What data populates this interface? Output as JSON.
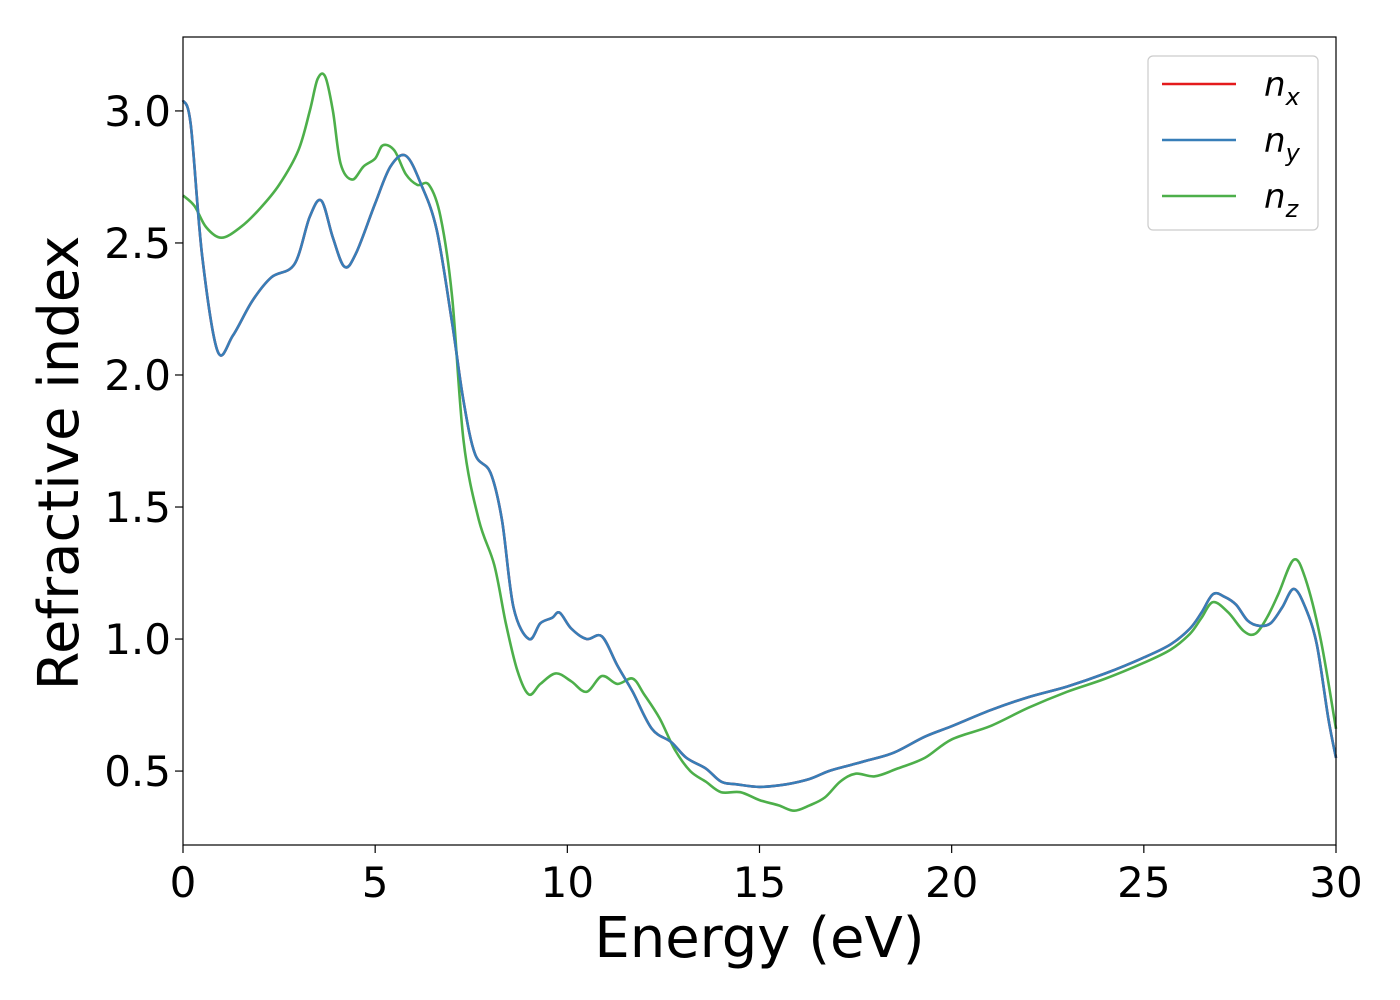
{
  "chart_data": {
    "type": "line",
    "xlabel": "Energy (eV)",
    "ylabel": "Refractive index",
    "xlim": [
      0,
      30
    ],
    "ylim": [
      0.22,
      3.28
    ],
    "xticks": [
      0,
      5,
      10,
      15,
      20,
      25,
      30
    ],
    "yticks": [
      0.5,
      1.0,
      1.5,
      2.0,
      2.5,
      3.0
    ],
    "xtick_labels": [
      "0",
      "5",
      "10",
      "15",
      "20",
      "25",
      "30"
    ],
    "ytick_labels": [
      "0.5",
      "1.0",
      "1.5",
      "2.0",
      "2.5",
      "3.0"
    ],
    "grid": false,
    "legend_position": "top-right",
    "series": [
      {
        "name": "n_x",
        "label_main": "n",
        "label_sub": "x",
        "color": "#e41a1c",
        "x": [
          0,
          0.2,
          0.5,
          0.9,
          1.3,
          1.8,
          2.3,
          2.9,
          3.3,
          3.6,
          3.9,
          4.2,
          4.5,
          5.0,
          5.4,
          5.8,
          6.2,
          6.6,
          7.0,
          7.3,
          7.6,
          8.0,
          8.3,
          8.6,
          9.0,
          9.3,
          9.6,
          9.8,
          10.1,
          10.5,
          10.9,
          11.3,
          11.7,
          12.2,
          12.7,
          13.1,
          13.6,
          14.0,
          14.4,
          15.0,
          15.7,
          16.3,
          16.8,
          17.3,
          17.8,
          18.5,
          19.3,
          20.0,
          21.0,
          22.0,
          23.0,
          24.0,
          25.0,
          25.7,
          26.2,
          26.5,
          26.8,
          27.1,
          27.4,
          27.7,
          28.0,
          28.3,
          28.6,
          28.9,
          29.2,
          29.5,
          29.8,
          30.0
        ],
        "y": [
          3.04,
          2.95,
          2.45,
          2.09,
          2.15,
          2.28,
          2.37,
          2.42,
          2.6,
          2.66,
          2.52,
          2.41,
          2.46,
          2.65,
          2.79,
          2.83,
          2.72,
          2.55,
          2.2,
          1.9,
          1.7,
          1.63,
          1.45,
          1.12,
          1.0,
          1.06,
          1.08,
          1.1,
          1.04,
          1.0,
          1.01,
          0.9,
          0.8,
          0.66,
          0.61,
          0.55,
          0.51,
          0.46,
          0.45,
          0.44,
          0.45,
          0.47,
          0.5,
          0.52,
          0.54,
          0.57,
          0.63,
          0.67,
          0.73,
          0.78,
          0.82,
          0.87,
          0.93,
          0.98,
          1.04,
          1.1,
          1.17,
          1.16,
          1.13,
          1.07,
          1.05,
          1.06,
          1.12,
          1.19,
          1.12,
          0.98,
          0.7,
          0.55
        ]
      },
      {
        "name": "n_y",
        "label_main": "n",
        "label_sub": "y",
        "color": "#377eb8",
        "x": [
          0,
          0.2,
          0.5,
          0.9,
          1.3,
          1.8,
          2.3,
          2.9,
          3.3,
          3.6,
          3.9,
          4.2,
          4.5,
          5.0,
          5.4,
          5.8,
          6.2,
          6.6,
          7.0,
          7.3,
          7.6,
          8.0,
          8.3,
          8.6,
          9.0,
          9.3,
          9.6,
          9.8,
          10.1,
          10.5,
          10.9,
          11.3,
          11.7,
          12.2,
          12.7,
          13.1,
          13.6,
          14.0,
          14.4,
          15.0,
          15.7,
          16.3,
          16.8,
          17.3,
          17.8,
          18.5,
          19.3,
          20.0,
          21.0,
          22.0,
          23.0,
          24.0,
          25.0,
          25.7,
          26.2,
          26.5,
          26.8,
          27.1,
          27.4,
          27.7,
          28.0,
          28.3,
          28.6,
          28.9,
          29.2,
          29.5,
          29.8,
          30.0
        ],
        "y": [
          3.04,
          2.95,
          2.45,
          2.09,
          2.15,
          2.28,
          2.37,
          2.42,
          2.6,
          2.66,
          2.52,
          2.41,
          2.46,
          2.65,
          2.79,
          2.83,
          2.72,
          2.55,
          2.2,
          1.9,
          1.7,
          1.63,
          1.45,
          1.12,
          1.0,
          1.06,
          1.08,
          1.1,
          1.04,
          1.0,
          1.01,
          0.9,
          0.8,
          0.66,
          0.61,
          0.55,
          0.51,
          0.46,
          0.45,
          0.44,
          0.45,
          0.47,
          0.5,
          0.52,
          0.54,
          0.57,
          0.63,
          0.67,
          0.73,
          0.78,
          0.82,
          0.87,
          0.93,
          0.98,
          1.04,
          1.1,
          1.17,
          1.16,
          1.13,
          1.07,
          1.05,
          1.06,
          1.12,
          1.19,
          1.12,
          0.98,
          0.7,
          0.55
        ]
      },
      {
        "name": "n_z",
        "label_main": "n",
        "label_sub": "z",
        "color": "#4daf4a",
        "x": [
          0,
          0.3,
          0.6,
          1.0,
          1.5,
          2.0,
          2.5,
          3.0,
          3.3,
          3.5,
          3.7,
          3.9,
          4.1,
          4.4,
          4.7,
          5.0,
          5.2,
          5.5,
          5.8,
          6.1,
          6.4,
          6.7,
          7.0,
          7.3,
          7.7,
          8.1,
          8.4,
          8.7,
          9.0,
          9.3,
          9.7,
          10.1,
          10.5,
          10.9,
          11.3,
          11.7,
          12.0,
          12.4,
          12.8,
          13.2,
          13.6,
          14.0,
          14.5,
          15.0,
          15.5,
          15.9,
          16.3,
          16.7,
          17.1,
          17.5,
          18.0,
          18.6,
          19.3,
          20.0,
          21.0,
          22.0,
          23.0,
          24.0,
          25.0,
          25.7,
          26.2,
          26.5,
          26.8,
          27.2,
          27.6,
          27.9,
          28.2,
          28.5,
          28.9,
          29.2,
          29.6,
          30.0
        ],
        "y": [
          2.68,
          2.64,
          2.56,
          2.52,
          2.56,
          2.63,
          2.72,
          2.85,
          3.0,
          3.12,
          3.13,
          3.0,
          2.8,
          2.74,
          2.79,
          2.82,
          2.87,
          2.85,
          2.76,
          2.72,
          2.72,
          2.6,
          2.3,
          1.75,
          1.45,
          1.28,
          1.06,
          0.88,
          0.79,
          0.83,
          0.87,
          0.84,
          0.8,
          0.86,
          0.83,
          0.85,
          0.79,
          0.7,
          0.58,
          0.5,
          0.46,
          0.42,
          0.42,
          0.39,
          0.37,
          0.35,
          0.37,
          0.4,
          0.46,
          0.49,
          0.48,
          0.51,
          0.55,
          0.62,
          0.67,
          0.74,
          0.8,
          0.85,
          0.91,
          0.96,
          1.02,
          1.08,
          1.14,
          1.1,
          1.03,
          1.02,
          1.08,
          1.17,
          1.3,
          1.23,
          1.0,
          0.66
        ]
      }
    ]
  }
}
